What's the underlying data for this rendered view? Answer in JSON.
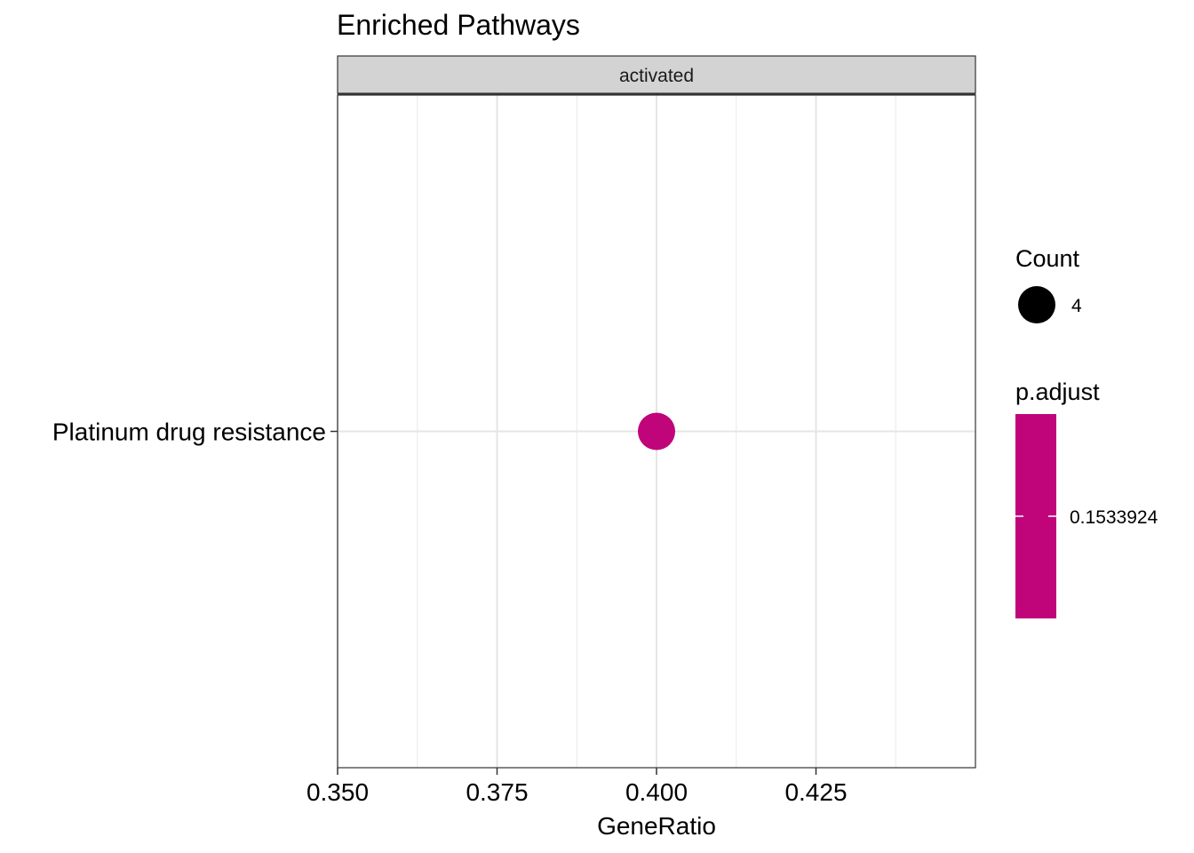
{
  "chart_data": {
    "type": "scatter",
    "title": "Enriched Pathways",
    "facet_label": "activated",
    "xlabel": "GeneRatio",
    "ylabel": "",
    "xlim": [
      0.35,
      0.45
    ],
    "x_ticks": [
      "0.350",
      "0.375",
      "0.400",
      "0.425"
    ],
    "x_tick_values": [
      0.35,
      0.375,
      0.4,
      0.425
    ],
    "x_minor_values": [
      0.3625,
      0.3875,
      0.4125,
      0.4375
    ],
    "categories": [
      "Platinum drug resistance"
    ],
    "points": [
      {
        "category": "Platinum drug resistance",
        "x": 0.4,
        "count": 4,
        "p_adjust": 0.1533924,
        "color": "#c0047a"
      }
    ],
    "grid": true,
    "legend_position": "right",
    "legends": {
      "size": {
        "title": "Count",
        "entries": [
          {
            "label": "4",
            "value": 4
          }
        ]
      },
      "color": {
        "title": "p.adjust",
        "labels": [
          "0.1533924"
        ],
        "values": [
          0.1533924
        ],
        "color": "#c0047a"
      }
    }
  }
}
